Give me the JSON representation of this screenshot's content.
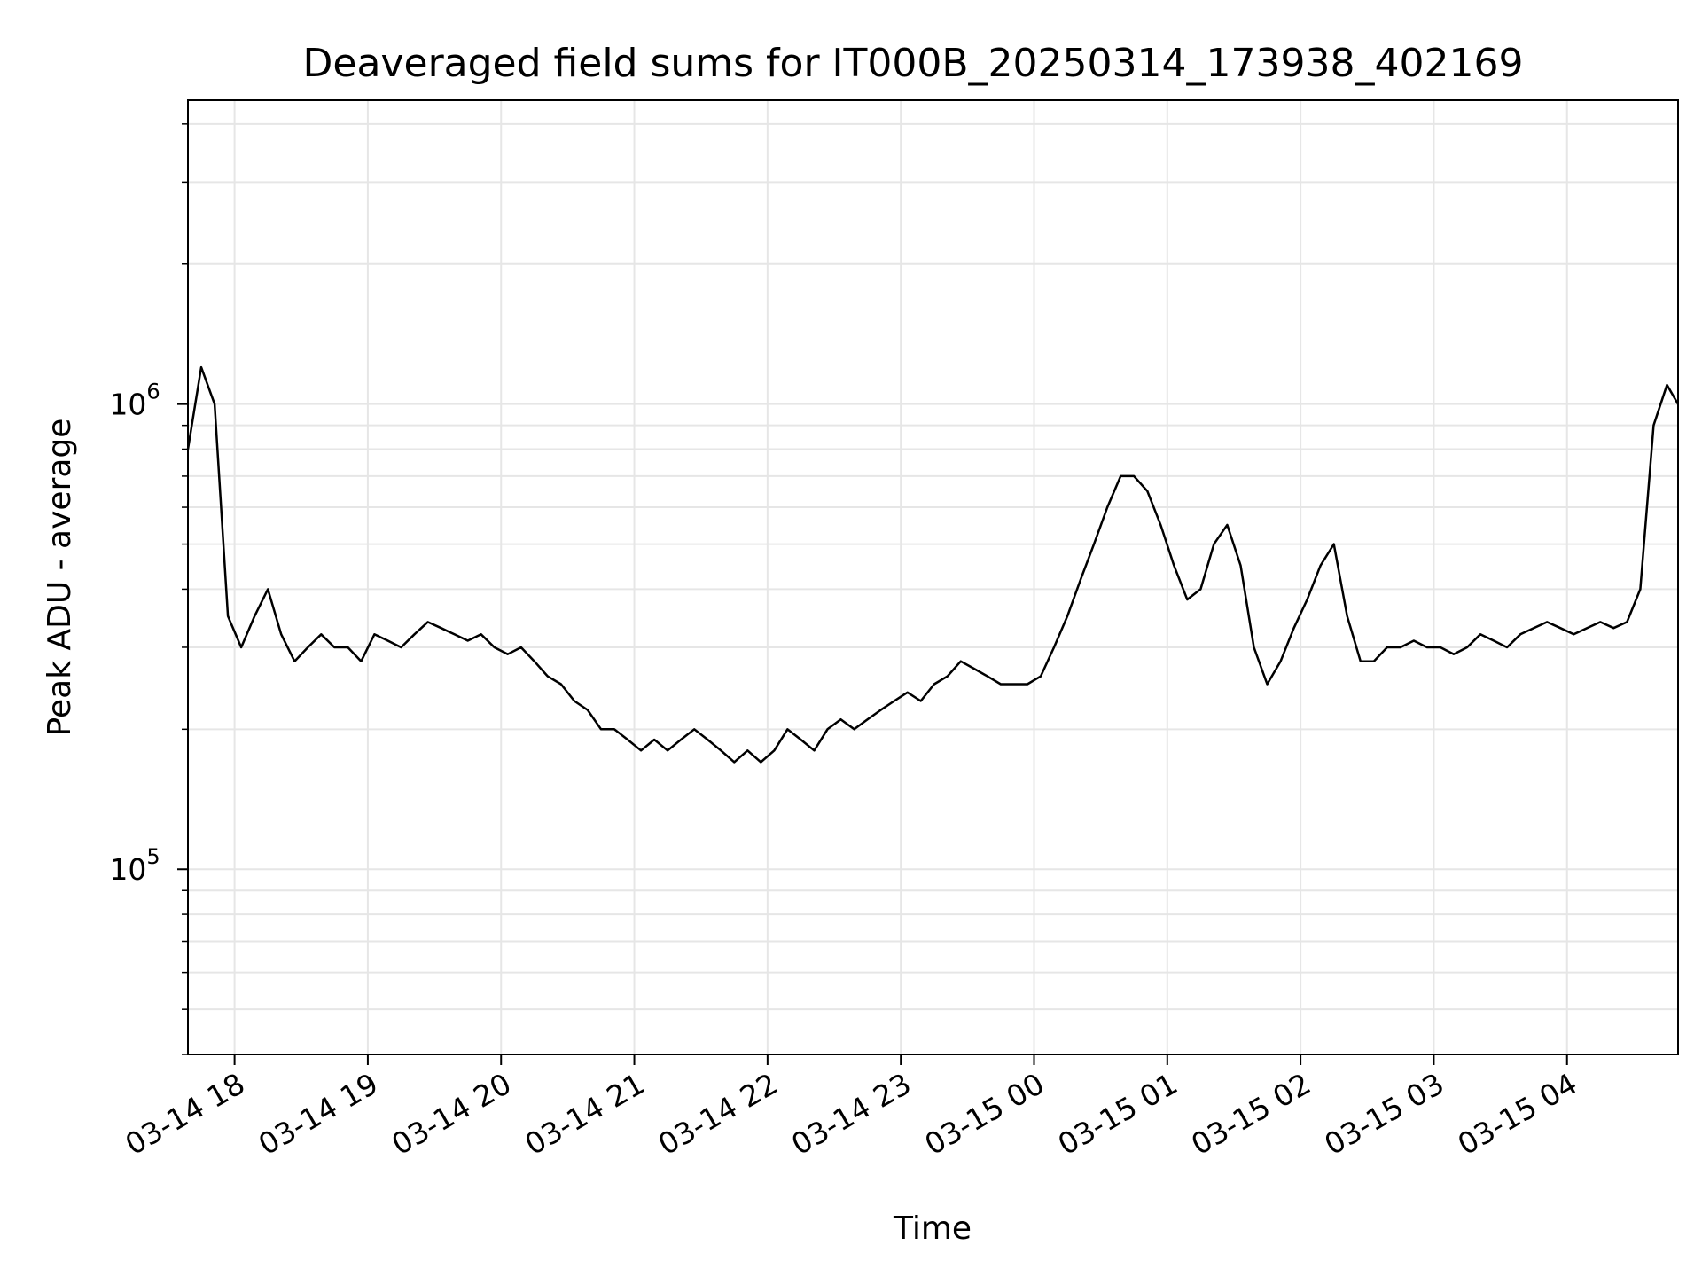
{
  "chart_data": {
    "type": "line",
    "title": "Deaveraged field sums for IT000B_20250314_173938_402169",
    "xlabel": "Time",
    "ylabel": "Peak ADU - average",
    "yscale": "log",
    "ylim": [
      40000,
      4500000
    ],
    "xlim": [
      "2025-03-14 17:39",
      "2025-03-15 04:50"
    ],
    "x_ticks": [
      {
        "time": "2025-03-14 18:00",
        "label": "03-14 18"
      },
      {
        "time": "2025-03-14 19:00",
        "label": "03-14 19"
      },
      {
        "time": "2025-03-14 20:00",
        "label": "03-14 20"
      },
      {
        "time": "2025-03-14 21:00",
        "label": "03-14 21"
      },
      {
        "time": "2025-03-14 22:00",
        "label": "03-14 22"
      },
      {
        "time": "2025-03-14 23:00",
        "label": "03-14 23"
      },
      {
        "time": "2025-03-15 00:00",
        "label": "03-15 00"
      },
      {
        "time": "2025-03-15 01:00",
        "label": "03-15 01"
      },
      {
        "time": "2025-03-15 02:00",
        "label": "03-15 02"
      },
      {
        "time": "2025-03-15 03:00",
        "label": "03-15 03"
      },
      {
        "time": "2025-03-15 04:00",
        "label": "03-15 04"
      }
    ],
    "y_major_ticks": [
      {
        "value": 100000,
        "base": "10",
        "exp": "5"
      },
      {
        "value": 1000000,
        "base": "10",
        "exp": "6"
      }
    ],
    "y_minor_ticks": [
      40000,
      50000,
      60000,
      70000,
      80000,
      90000,
      200000,
      300000,
      400000,
      500000,
      600000,
      700000,
      800000,
      900000,
      2000000,
      3000000,
      4000000
    ],
    "grid": true,
    "line_color": "#000000",
    "grid_color": "#e6e6e6",
    "series": [
      {
        "points": [
          [
            "2025-03-14 17:39",
            800000
          ],
          [
            "2025-03-14 17:45",
            1200000
          ],
          [
            "2025-03-14 17:51",
            1000000
          ],
          [
            "2025-03-14 17:57",
            350000
          ],
          [
            "2025-03-14 18:03",
            300000
          ],
          [
            "2025-03-14 18:09",
            350000
          ],
          [
            "2025-03-14 18:15",
            400000
          ],
          [
            "2025-03-14 18:21",
            320000
          ],
          [
            "2025-03-14 18:27",
            280000
          ],
          [
            "2025-03-14 18:33",
            300000
          ],
          [
            "2025-03-14 18:39",
            320000
          ],
          [
            "2025-03-14 18:45",
            300000
          ],
          [
            "2025-03-14 18:51",
            300000
          ],
          [
            "2025-03-14 18:57",
            280000
          ],
          [
            "2025-03-14 19:03",
            320000
          ],
          [
            "2025-03-14 19:09",
            310000
          ],
          [
            "2025-03-14 19:15",
            300000
          ],
          [
            "2025-03-14 19:21",
            320000
          ],
          [
            "2025-03-14 19:27",
            340000
          ],
          [
            "2025-03-14 19:33",
            330000
          ],
          [
            "2025-03-14 19:39",
            320000
          ],
          [
            "2025-03-14 19:45",
            310000
          ],
          [
            "2025-03-14 19:51",
            320000
          ],
          [
            "2025-03-14 19:57",
            300000
          ],
          [
            "2025-03-14 20:03",
            290000
          ],
          [
            "2025-03-14 20:09",
            300000
          ],
          [
            "2025-03-14 20:15",
            280000
          ],
          [
            "2025-03-14 20:21",
            260000
          ],
          [
            "2025-03-14 20:27",
            250000
          ],
          [
            "2025-03-14 20:33",
            230000
          ],
          [
            "2025-03-14 20:39",
            220000
          ],
          [
            "2025-03-14 20:45",
            200000
          ],
          [
            "2025-03-14 20:51",
            200000
          ],
          [
            "2025-03-14 20:57",
            190000
          ],
          [
            "2025-03-14 21:03",
            180000
          ],
          [
            "2025-03-14 21:09",
            190000
          ],
          [
            "2025-03-14 21:15",
            180000
          ],
          [
            "2025-03-14 21:21",
            190000
          ],
          [
            "2025-03-14 21:27",
            200000
          ],
          [
            "2025-03-14 21:33",
            190000
          ],
          [
            "2025-03-14 21:39",
            180000
          ],
          [
            "2025-03-14 21:45",
            170000
          ],
          [
            "2025-03-14 21:51",
            180000
          ],
          [
            "2025-03-14 21:57",
            170000
          ],
          [
            "2025-03-14 22:03",
            180000
          ],
          [
            "2025-03-14 22:09",
            200000
          ],
          [
            "2025-03-14 22:15",
            190000
          ],
          [
            "2025-03-14 22:21",
            180000
          ],
          [
            "2025-03-14 22:27",
            200000
          ],
          [
            "2025-03-14 22:33",
            210000
          ],
          [
            "2025-03-14 22:39",
            200000
          ],
          [
            "2025-03-14 22:45",
            210000
          ],
          [
            "2025-03-14 22:51",
            220000
          ],
          [
            "2025-03-14 22:57",
            230000
          ],
          [
            "2025-03-14 23:03",
            240000
          ],
          [
            "2025-03-14 23:09",
            230000
          ],
          [
            "2025-03-14 23:15",
            250000
          ],
          [
            "2025-03-14 23:21",
            260000
          ],
          [
            "2025-03-14 23:27",
            280000
          ],
          [
            "2025-03-14 23:33",
            270000
          ],
          [
            "2025-03-14 23:39",
            260000
          ],
          [
            "2025-03-14 23:45",
            250000
          ],
          [
            "2025-03-14 23:51",
            250000
          ],
          [
            "2025-03-14 23:57",
            250000
          ],
          [
            "2025-03-15 00:03",
            260000
          ],
          [
            "2025-03-15 00:09",
            300000
          ],
          [
            "2025-03-15 00:15",
            350000
          ],
          [
            "2025-03-15 00:21",
            420000
          ],
          [
            "2025-03-15 00:27",
            500000
          ],
          [
            "2025-03-15 00:33",
            600000
          ],
          [
            "2025-03-15 00:39",
            700000
          ],
          [
            "2025-03-15 00:45",
            700000
          ],
          [
            "2025-03-15 00:51",
            650000
          ],
          [
            "2025-03-15 00:57",
            550000
          ],
          [
            "2025-03-15 01:03",
            450000
          ],
          [
            "2025-03-15 01:09",
            380000
          ],
          [
            "2025-03-15 01:15",
            400000
          ],
          [
            "2025-03-15 01:21",
            500000
          ],
          [
            "2025-03-15 01:27",
            550000
          ],
          [
            "2025-03-15 01:33",
            450000
          ],
          [
            "2025-03-15 01:39",
            300000
          ],
          [
            "2025-03-15 01:45",
            250000
          ],
          [
            "2025-03-15 01:51",
            280000
          ],
          [
            "2025-03-15 01:57",
            330000
          ],
          [
            "2025-03-15 02:03",
            380000
          ],
          [
            "2025-03-15 02:09",
            450000
          ],
          [
            "2025-03-15 02:15",
            500000
          ],
          [
            "2025-03-15 02:21",
            350000
          ],
          [
            "2025-03-15 02:27",
            280000
          ],
          [
            "2025-03-15 02:33",
            280000
          ],
          [
            "2025-03-15 02:39",
            300000
          ],
          [
            "2025-03-15 02:45",
            300000
          ],
          [
            "2025-03-15 02:51",
            310000
          ],
          [
            "2025-03-15 02:57",
            300000
          ],
          [
            "2025-03-15 03:03",
            300000
          ],
          [
            "2025-03-15 03:09",
            290000
          ],
          [
            "2025-03-15 03:15",
            300000
          ],
          [
            "2025-03-15 03:21",
            320000
          ],
          [
            "2025-03-15 03:27",
            310000
          ],
          [
            "2025-03-15 03:33",
            300000
          ],
          [
            "2025-03-15 03:39",
            320000
          ],
          [
            "2025-03-15 03:45",
            330000
          ],
          [
            "2025-03-15 03:51",
            340000
          ],
          [
            "2025-03-15 03:57",
            330000
          ],
          [
            "2025-03-15 04:03",
            320000
          ],
          [
            "2025-03-15 04:09",
            330000
          ],
          [
            "2025-03-15 04:15",
            340000
          ],
          [
            "2025-03-15 04:21",
            330000
          ],
          [
            "2025-03-15 04:27",
            340000
          ],
          [
            "2025-03-15 04:33",
            400000
          ],
          [
            "2025-03-15 04:39",
            900000
          ],
          [
            "2025-03-15 04:45",
            1100000
          ],
          [
            "2025-03-15 04:50",
            1000000
          ]
        ]
      }
    ]
  }
}
